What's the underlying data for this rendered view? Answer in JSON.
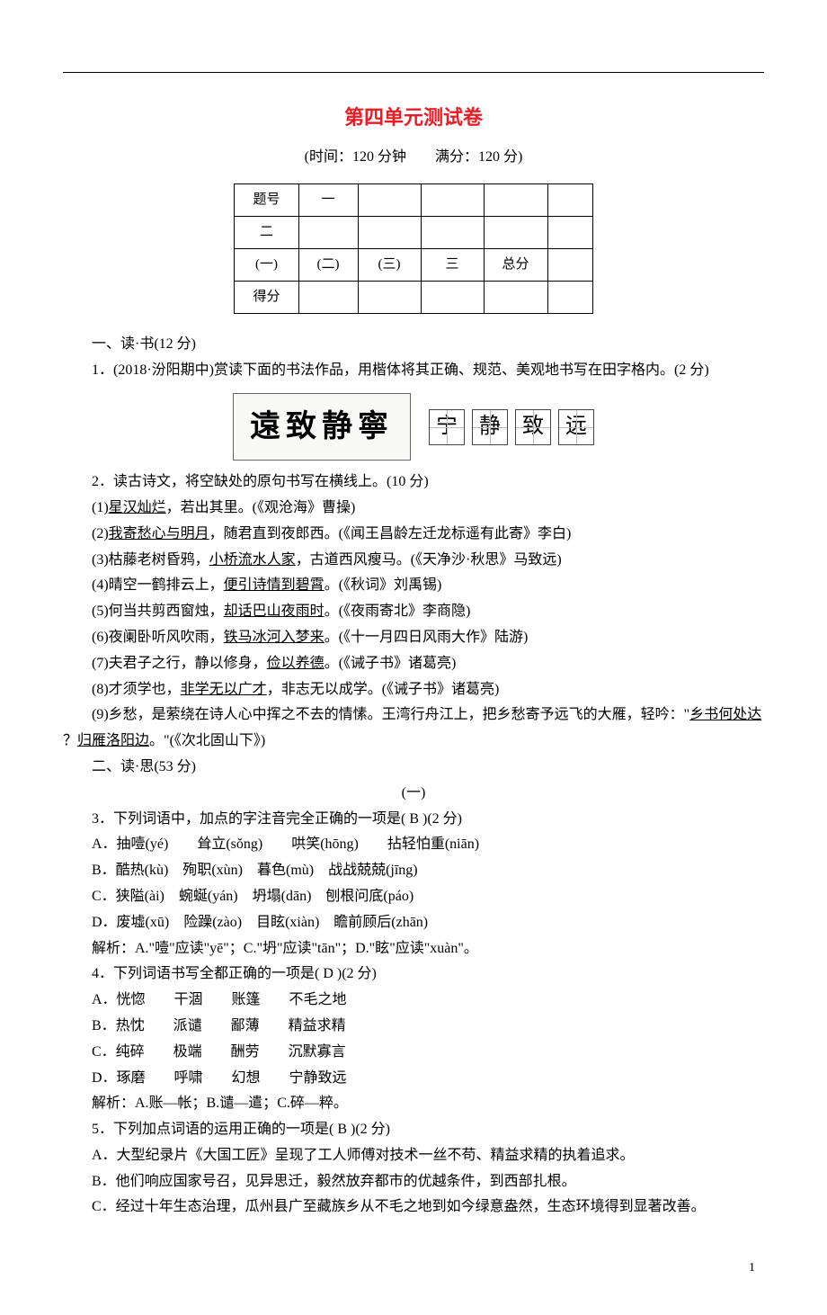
{
  "title": "第四单元测试卷",
  "subtitle": "(时间：120 分钟　　满分：120 分)",
  "table": {
    "r1c1": "题号",
    "r1c2": "一",
    "r2c1": "二",
    "r3c1": "(一)",
    "r3c2": "(二)",
    "r3c3": "(三)",
    "r3c4": "三",
    "r3c5": "总分",
    "r4c1": "得分"
  },
  "s1_heading": "一、读·书(12 分)",
  "q1": "1．(2018·汾阳期中)赏读下面的书法作品，用楷体将其正确、规范、美观地书写在田字格内。(2 分)",
  "calligraphy_text": "遠致静寧",
  "tianzi": [
    "宁",
    "静",
    "致",
    "远"
  ],
  "q2": "2．读古诗文，将空缺处的原句书写在横线上。(10 分)",
  "q2_1a": "(1)",
  "q2_1u": "星汉灿烂",
  "q2_1b": "，若出其里。(《观沧海》曹操)",
  "q2_2a": "(2)",
  "q2_2u": "我寄愁心与明月",
  "q2_2b": "，随君直到夜郎西。(《闻王昌龄左迁龙标遥有此寄》李白)",
  "q2_3a": "(3)枯藤老树昏鸦，",
  "q2_3u": "小桥流水人家",
  "q2_3b": "，古道西风瘦马。(《天净沙·秋思》马致远)",
  "q2_4a": "(4)晴空一鹤排云上，",
  "q2_4u": "便引诗情到碧霄",
  "q2_4b": "。(《秋词》刘禹锡)",
  "q2_5a": "(5)何当共剪西窗烛，",
  "q2_5u": "却话巴山夜雨时",
  "q2_5b": "。(《夜雨寄北》李商隐)",
  "q2_6a": "(6)夜阑卧听风吹雨，",
  "q2_6u": "铁马冰河入梦来",
  "q2_6b": "。(《十一月四日风雨大作》陆游)",
  "q2_7a": "(7)夫君子之行，静以修身，",
  "q2_7u": "俭以养德",
  "q2_7b": "。(《诫子书》诸葛亮)",
  "q2_8a": "(8)才须学也，",
  "q2_8u": "非学无以广才",
  "q2_8b": "，非志无以成学。(《诫子书》诸葛亮)",
  "q2_9a": "(9)乡愁，是萦绕在诗人心中挥之不去的情愫。王湾行舟江上，把乡愁寄予远飞的大雁，轻吟：\"",
  "q2_9u1": "乡书何处达",
  "q2_9m": " ？",
  "q2_9u2": "归雁洛阳边",
  "q2_9b": "。\"(《次北固山下》)",
  "s2_heading": "二、读·思(53 分)",
  "s2_sub": "(一)",
  "q3": "3．下列词语中，加点的字注音完全正确的一项是(  B  )(2 分)",
  "q3a": "A．抽噎(yé)　　耸立(sǒng)　　哄笑(hōng)　　拈轻怕重(niān)",
  "q3b": "B．酷热(kù)　殉职(xùn)　暮色(mù)　战战兢兢(jīng)",
  "q3c": "C．狭隘(ài)　蜿蜒(yán)　坍塌(dān)　刨根问底(páo)",
  "q3d": "D．废墟(xū)　险躁(zào)　目眩(xiàn)　瞻前顾后(zhān)",
  "q3e": "解析：A.\"噎\"应读\"yē\"；C.\"坍\"应读\"tān\"；D.\"眩\"应读\"xuàn\"。",
  "q4": "4．下列词语书写全都正确的一项是(  D  )(2 分)",
  "q4a": "A．恍惚　　干涸　　账篷　　不毛之地",
  "q4b": "B．热忱　　派谴　　鄙薄　　精益求精",
  "q4c": "C．纯碎　　极端　　酬劳　　沉默寡言",
  "q4d": "D．琢磨　　呼啸　　幻想　　宁静致远",
  "q4e": "解析：A.账—帐；B.谴—遣；C.碎—粹。",
  "q5": "5．下列加点词语的运用正确的一项是(  B  )(2 分)",
  "q5a": "A．大型纪录片《大国工匠》呈现了工人师傅对技术一丝不苟、精益求精的执着追求。",
  "q5b": "B．他们响应国家号召，见异思迁，毅然放弃都市的优越条件，到西部扎根。",
  "q5c": "C．经过十年生态治理，瓜州县广至藏族乡从不毛之地到如今绿意盎然，生态环境得到显著改善。",
  "page_number": "1",
  "colors": {
    "title": "#ed1c24",
    "text": "#000000",
    "background": "#ffffff"
  }
}
